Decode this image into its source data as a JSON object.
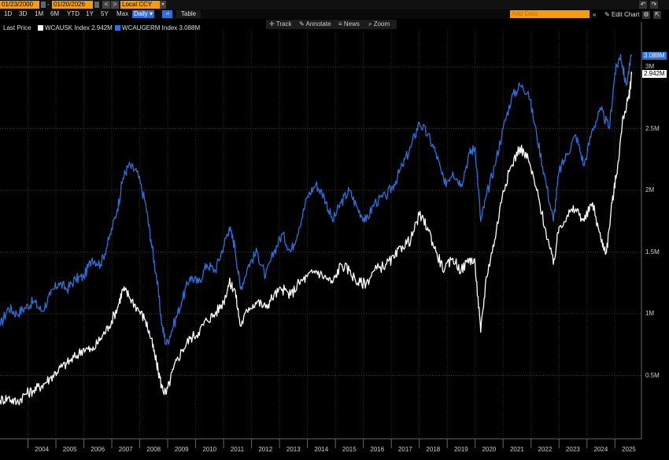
{
  "toolbar": {
    "start_date": "01/23/2000",
    "end_date": "01/20/2026",
    "currency": "Local CCY",
    "prev": "<",
    "next": ">",
    "dropdown": "▾",
    "add_data_placeholder": "Add Data",
    "edit_chart_label": "Edit Chart",
    "table_label": "Table",
    "range_buttons": [
      "1D",
      "3D",
      "1M",
      "6M",
      "YTD",
      "1Y",
      "5Y",
      "Max",
      "Daily ▾"
    ],
    "selected_range": "Daily ▾"
  },
  "legend": {
    "title": "Last Price",
    "items": [
      {
        "label": "WCAUSK Index 2.942M",
        "color": "#ffffff"
      },
      {
        "label": "WCAUGERM Index 3.088M",
        "color": "#2f6fd8"
      }
    ]
  },
  "tools": [
    "Track",
    "Annotate",
    "News",
    "Zoom"
  ],
  "chart_data": {
    "type": "line",
    "title": "",
    "xlabel": "",
    "ylabel": "",
    "ylim": [
      0,
      3300000
    ],
    "x_ticks": [
      "2004",
      "2005",
      "2006",
      "2007",
      "2008",
      "2009",
      "2010",
      "2011",
      "2012",
      "2013",
      "2014",
      "2015",
      "2016",
      "2017",
      "2018",
      "2019",
      "2020",
      "2021",
      "2022",
      "2023",
      "2024",
      "2025"
    ],
    "y_ticks": [
      {
        "value": 500000,
        "label": "0.5M"
      },
      {
        "value": 1000000,
        "label": "1M"
      },
      {
        "value": 1500000,
        "label": "1.5M"
      },
      {
        "value": 2000000,
        "label": "2M"
      },
      {
        "value": 2500000,
        "label": "2.5M"
      },
      {
        "value": 3000000,
        "label": "3M"
      }
    ],
    "series": [
      {
        "name": "WCAUGERM Index",
        "color": "#2f6fd8",
        "last_label": "3.088M",
        "points": [
          [
            2003.0,
            900000
          ],
          [
            2003.3,
            1050000
          ],
          [
            2003.6,
            1000000
          ],
          [
            2003.9,
            1050000
          ],
          [
            2004.2,
            1100000
          ],
          [
            2004.5,
            1020000
          ],
          [
            2004.8,
            1150000
          ],
          [
            2005.1,
            1250000
          ],
          [
            2005.4,
            1200000
          ],
          [
            2005.7,
            1280000
          ],
          [
            2006.0,
            1300000
          ],
          [
            2006.3,
            1450000
          ],
          [
            2006.6,
            1400000
          ],
          [
            2006.9,
            1600000
          ],
          [
            2007.2,
            1850000
          ],
          [
            2007.4,
            2100000
          ],
          [
            2007.6,
            2200000
          ],
          [
            2007.9,
            2150000
          ],
          [
            2008.2,
            1900000
          ],
          [
            2008.4,
            1600000
          ],
          [
            2008.6,
            1300000
          ],
          [
            2008.8,
            900000
          ],
          [
            2008.95,
            750000
          ],
          [
            2009.2,
            900000
          ],
          [
            2009.5,
            1100000
          ],
          [
            2009.8,
            1300000
          ],
          [
            2010.1,
            1250000
          ],
          [
            2010.4,
            1400000
          ],
          [
            2010.7,
            1350000
          ],
          [
            2011.0,
            1550000
          ],
          [
            2011.2,
            1700000
          ],
          [
            2011.4,
            1550000
          ],
          [
            2011.6,
            1200000
          ],
          [
            2011.9,
            1400000
          ],
          [
            2012.2,
            1500000
          ],
          [
            2012.5,
            1300000
          ],
          [
            2012.8,
            1500000
          ],
          [
            2013.1,
            1650000
          ],
          [
            2013.4,
            1500000
          ],
          [
            2013.7,
            1700000
          ],
          [
            2014.0,
            1950000
          ],
          [
            2014.3,
            2050000
          ],
          [
            2014.6,
            1950000
          ],
          [
            2014.9,
            1750000
          ],
          [
            2015.2,
            1900000
          ],
          [
            2015.5,
            2000000
          ],
          [
            2015.8,
            1850000
          ],
          [
            2016.1,
            1750000
          ],
          [
            2016.4,
            1900000
          ],
          [
            2016.8,
            1950000
          ],
          [
            2017.1,
            2050000
          ],
          [
            2017.4,
            2200000
          ],
          [
            2017.7,
            2350000
          ],
          [
            2018.0,
            2550000
          ],
          [
            2018.3,
            2450000
          ],
          [
            2018.6,
            2300000
          ],
          [
            2018.9,
            2050000
          ],
          [
            2019.2,
            2150000
          ],
          [
            2019.5,
            2050000
          ],
          [
            2019.8,
            2300000
          ],
          [
            2020.0,
            2350000
          ],
          [
            2020.2,
            1750000
          ],
          [
            2020.4,
            1950000
          ],
          [
            2020.7,
            2200000
          ],
          [
            2021.0,
            2500000
          ],
          [
            2021.3,
            2750000
          ],
          [
            2021.6,
            2850000
          ],
          [
            2021.9,
            2800000
          ],
          [
            2022.2,
            2450000
          ],
          [
            2022.5,
            2100000
          ],
          [
            2022.8,
            1750000
          ],
          [
            2023.0,
            2150000
          ],
          [
            2023.3,
            2300000
          ],
          [
            2023.6,
            2450000
          ],
          [
            2023.9,
            2200000
          ],
          [
            2024.2,
            2500000
          ],
          [
            2024.5,
            2650000
          ],
          [
            2024.8,
            2500000
          ],
          [
            2025.0,
            2950000
          ],
          [
            2025.2,
            3100000
          ],
          [
            2025.4,
            2850000
          ],
          [
            2025.6,
            3088000
          ]
        ]
      },
      {
        "name": "WCAUSK Index",
        "color": "#ffffff",
        "last_label": "2.942M",
        "points": [
          [
            2003.0,
            300000
          ],
          [
            2003.3,
            320000
          ],
          [
            2003.6,
            280000
          ],
          [
            2003.9,
            350000
          ],
          [
            2004.2,
            380000
          ],
          [
            2004.5,
            420000
          ],
          [
            2004.8,
            480000
          ],
          [
            2005.1,
            550000
          ],
          [
            2005.4,
            600000
          ],
          [
            2005.7,
            650000
          ],
          [
            2006.0,
            720000
          ],
          [
            2006.3,
            700000
          ],
          [
            2006.6,
            800000
          ],
          [
            2006.9,
            900000
          ],
          [
            2007.2,
            1050000
          ],
          [
            2007.4,
            1200000
          ],
          [
            2007.6,
            1150000
          ],
          [
            2007.9,
            1050000
          ],
          [
            2008.2,
            950000
          ],
          [
            2008.4,
            800000
          ],
          [
            2008.6,
            600000
          ],
          [
            2008.8,
            400000
          ],
          [
            2008.95,
            350000
          ],
          [
            2009.2,
            550000
          ],
          [
            2009.5,
            700000
          ],
          [
            2009.8,
            800000
          ],
          [
            2010.1,
            850000
          ],
          [
            2010.4,
            950000
          ],
          [
            2010.7,
            1000000
          ],
          [
            2011.0,
            1100000
          ],
          [
            2011.2,
            1250000
          ],
          [
            2011.4,
            1200000
          ],
          [
            2011.6,
            900000
          ],
          [
            2011.9,
            1050000
          ],
          [
            2012.2,
            1100000
          ],
          [
            2012.5,
            1050000
          ],
          [
            2012.8,
            1150000
          ],
          [
            2013.1,
            1200000
          ],
          [
            2013.4,
            1150000
          ],
          [
            2013.7,
            1250000
          ],
          [
            2014.0,
            1300000
          ],
          [
            2014.3,
            1350000
          ],
          [
            2014.6,
            1300000
          ],
          [
            2014.9,
            1250000
          ],
          [
            2015.2,
            1400000
          ],
          [
            2015.5,
            1350000
          ],
          [
            2015.8,
            1250000
          ],
          [
            2016.1,
            1250000
          ],
          [
            2016.4,
            1350000
          ],
          [
            2016.8,
            1400000
          ],
          [
            2017.1,
            1450000
          ],
          [
            2017.4,
            1550000
          ],
          [
            2017.7,
            1600000
          ],
          [
            2018.0,
            1800000
          ],
          [
            2018.3,
            1700000
          ],
          [
            2018.6,
            1500000
          ],
          [
            2018.9,
            1350000
          ],
          [
            2019.2,
            1450000
          ],
          [
            2019.5,
            1350000
          ],
          [
            2019.8,
            1450000
          ],
          [
            2020.0,
            1400000
          ],
          [
            2020.2,
            850000
          ],
          [
            2020.4,
            1300000
          ],
          [
            2020.7,
            1600000
          ],
          [
            2021.0,
            2000000
          ],
          [
            2021.3,
            2200000
          ],
          [
            2021.6,
            2350000
          ],
          [
            2021.9,
            2250000
          ],
          [
            2022.2,
            2000000
          ],
          [
            2022.5,
            1700000
          ],
          [
            2022.8,
            1400000
          ],
          [
            2023.0,
            1700000
          ],
          [
            2023.3,
            1800000
          ],
          [
            2023.6,
            1850000
          ],
          [
            2023.9,
            1750000
          ],
          [
            2024.2,
            1900000
          ],
          [
            2024.5,
            1600000
          ],
          [
            2024.7,
            1500000
          ],
          [
            2024.9,
            1900000
          ],
          [
            2025.1,
            2200000
          ],
          [
            2025.3,
            2600000
          ],
          [
            2025.5,
            2750000
          ],
          [
            2025.6,
            2942000
          ]
        ]
      }
    ]
  }
}
